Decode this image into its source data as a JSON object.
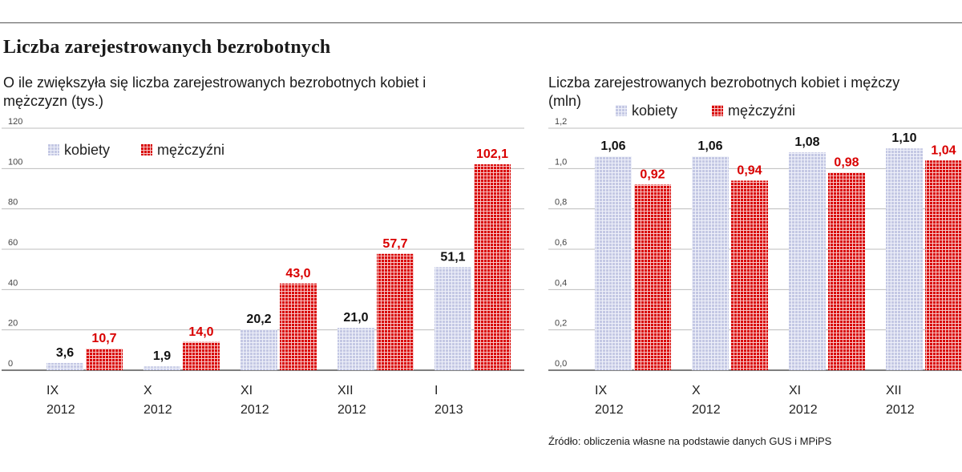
{
  "title": "Liczba zarejestrowanych bezrobotnych",
  "source": "Źródło: obliczenia własne na podstawie danych GUS i MPiPS",
  "colors": {
    "kobiety": "#c9cce6",
    "mezczyzni": "#d80000"
  },
  "chart_data": [
    {
      "type": "bar",
      "title": "O ile zwiększyła się liczba zarejestrowanych bezrobotnych kobiet i mężczyzn (tys.)",
      "categories": [
        [
          "IX",
          "2012"
        ],
        [
          "X",
          "2012"
        ],
        [
          "XI",
          "2012"
        ],
        [
          "XII",
          "2012"
        ],
        [
          "I",
          "2013"
        ]
      ],
      "series": [
        {
          "name": "kobiety",
          "values": [
            3.6,
            1.9,
            20.2,
            21.0,
            51.1
          ],
          "labels": [
            "3,6",
            "1,9",
            "20,2",
            "21,0",
            "51,1"
          ]
        },
        {
          "name": "mężczyźni",
          "values": [
            10.7,
            14.0,
            43.0,
            57.7,
            102.1
          ],
          "labels": [
            "10,7",
            "14,0",
            "43,0",
            "57,7",
            "102,1"
          ]
        }
      ],
      "ylim": [
        0,
        120
      ],
      "yticks": [
        "0",
        "20",
        "40",
        "60",
        "80",
        "100",
        "120"
      ],
      "grid": true,
      "legend": "top-left"
    },
    {
      "type": "bar",
      "title": "Liczba zarejestrowanych bezrobotnych kobiet i mężczy",
      "title_line2": "(mln)",
      "categories": [
        [
          "IX",
          "2012"
        ],
        [
          "X",
          "2012"
        ],
        [
          "XI",
          "2012"
        ],
        [
          "XII",
          "2012"
        ]
      ],
      "series": [
        {
          "name": "kobiety",
          "values": [
            1.06,
            1.06,
            1.08,
            1.1
          ],
          "labels": [
            "1,06",
            "1,06",
            "1,08",
            "1,10"
          ]
        },
        {
          "name": "mężczyźni",
          "values": [
            0.92,
            0.94,
            0.98,
            1.04
          ],
          "labels": [
            "0,92",
            "0,94",
            "0,98",
            "1,04"
          ]
        }
      ],
      "ylim": [
        0,
        1.2
      ],
      "yticks": [
        "0,0",
        "0,2",
        "0,4",
        "0,6",
        "0,8",
        "1,0",
        "1,2"
      ],
      "grid": true,
      "legend": "top"
    }
  ]
}
